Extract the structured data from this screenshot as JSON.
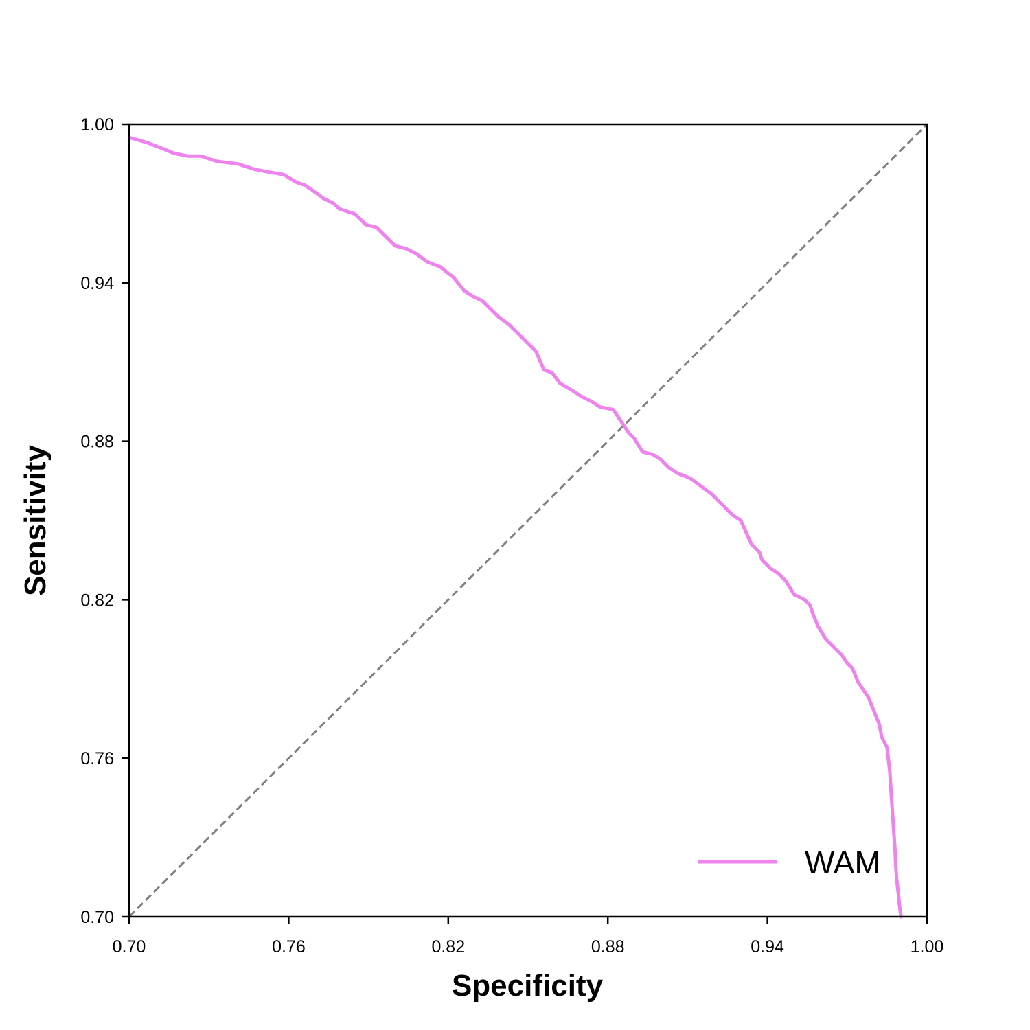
{
  "chart_data": {
    "type": "line",
    "title": "",
    "xlabel": "Specificity",
    "ylabel": "Sensitivity",
    "xlim": [
      0.7,
      1.0
    ],
    "ylim": [
      0.7,
      1.0
    ],
    "x_ticks": [
      "0.70",
      "0.76",
      "0.82",
      "0.88",
      "0.94",
      "1.00"
    ],
    "y_ticks": [
      "0.70",
      "0.76",
      "0.82",
      "0.88",
      "0.94",
      "1.00"
    ],
    "grid": false,
    "legend_position": "bottom-right",
    "reference_line": {
      "style": "dashed",
      "color": "#808080",
      "from": [
        0.7,
        0.7
      ],
      "to": [
        1.0,
        1.0
      ]
    },
    "series": [
      {
        "name": "WAM",
        "color": "#EE82EE",
        "x": [
          0.7,
          0.707,
          0.712,
          0.717,
          0.722,
          0.727,
          0.733,
          0.741,
          0.747,
          0.752,
          0.758,
          0.763,
          0.766,
          0.769,
          0.773,
          0.777,
          0.779,
          0.785,
          0.789,
          0.793,
          0.797,
          0.8,
          0.804,
          0.808,
          0.812,
          0.817,
          0.822,
          0.826,
          0.829,
          0.833,
          0.836,
          0.839,
          0.843,
          0.848,
          0.853,
          0.856,
          0.859,
          0.862,
          0.867,
          0.87,
          0.874,
          0.877,
          0.882,
          0.886,
          0.888,
          0.89,
          0.893,
          0.897,
          0.9,
          0.903,
          0.906,
          0.911,
          0.915,
          0.919,
          0.922,
          0.927,
          0.93,
          0.934,
          0.937,
          0.938,
          0.941,
          0.944,
          0.947,
          0.95,
          0.954,
          0.956,
          0.957,
          0.959,
          0.962,
          0.965,
          0.968,
          0.97,
          0.972,
          0.974,
          0.976,
          0.978,
          0.98,
          0.982,
          0.983,
          0.985,
          0.986,
          0.987,
          0.988,
          0.9885,
          0.9893,
          0.9898,
          0.9903,
          0.9905
        ],
        "y": [
          0.995,
          0.993,
          0.991,
          0.989,
          0.988,
          0.988,
          0.986,
          0.985,
          0.983,
          0.982,
          0.981,
          0.978,
          0.977,
          0.975,
          0.972,
          0.97,
          0.968,
          0.966,
          0.962,
          0.961,
          0.957,
          0.954,
          0.953,
          0.951,
          0.948,
          0.946,
          0.942,
          0.937,
          0.935,
          0.933,
          0.93,
          0.927,
          0.924,
          0.919,
          0.914,
          0.907,
          0.906,
          0.902,
          0.899,
          0.897,
          0.895,
          0.893,
          0.892,
          0.886,
          0.883,
          0.881,
          0.876,
          0.875,
          0.873,
          0.87,
          0.868,
          0.866,
          0.863,
          0.86,
          0.857,
          0.852,
          0.85,
          0.841,
          0.838,
          0.835,
          0.832,
          0.83,
          0.827,
          0.822,
          0.82,
          0.818,
          0.815,
          0.81,
          0.805,
          0.802,
          0.799,
          0.796,
          0.794,
          0.789,
          0.786,
          0.783,
          0.778,
          0.773,
          0.768,
          0.764,
          0.755,
          0.74,
          0.725,
          0.715,
          0.708,
          0.703,
          0.7,
          0.7
        ]
      }
    ]
  }
}
